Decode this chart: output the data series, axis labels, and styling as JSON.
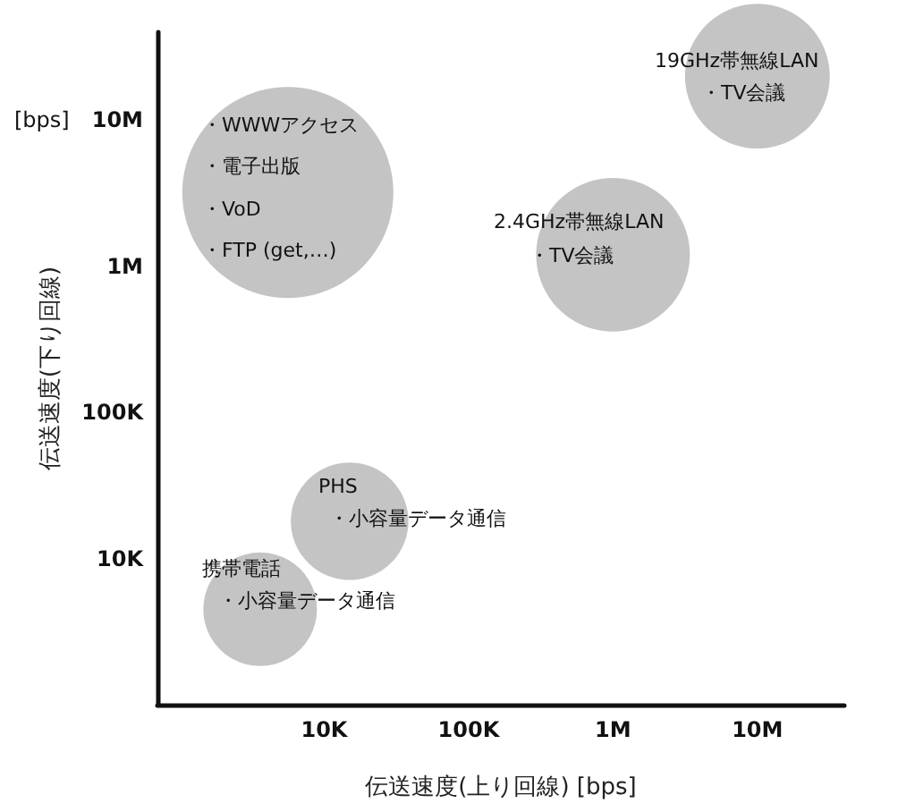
{
  "chart_data": {
    "type": "bubble",
    "xlabel": "伝送速度(上り回線) [bps]",
    "ylabel": "伝送速度(下り回線)",
    "log": "xy",
    "grid": false,
    "color": "#c4c4c4",
    "x": [
      5600,
      1000000,
      10000000,
      15000,
      3600
    ],
    "values": [
      3200000,
      1200000,
      20000000,
      18000,
      4500
    ],
    "sizes": [
      1,
      0.53,
      0.47,
      0.31,
      0.29
    ],
    "xlim": [
      700,
      40000000
    ],
    "ylim": [
      1000,
      40000000
    ],
    "xticks": [
      {
        "value": 10000,
        "label": "10K"
      },
      {
        "value": 100000,
        "label": "100K"
      },
      {
        "value": 1000000,
        "label": "1M"
      },
      {
        "value": 10000000,
        "label": "10M"
      }
    ],
    "yticks": [
      {
        "value": 10000,
        "label": "10K"
      },
      {
        "value": 100000,
        "label": "100K"
      },
      {
        "value": 1000000,
        "label": "1M"
      },
      {
        "value": 10000000,
        "label": "10M"
      }
    ],
    "annotations": [
      "[bps]",
      "・WWWアクセス",
      "・電子出版",
      "・VoD",
      "・FTP (get,…)",
      "2.4GHz帯無線LAN",
      "・TV会議",
      "19GHz帯無線LAN",
      "・TV会議",
      "PHS",
      "・小容量データ通信",
      "携帯電話",
      "・小容量データ通信"
    ]
  }
}
